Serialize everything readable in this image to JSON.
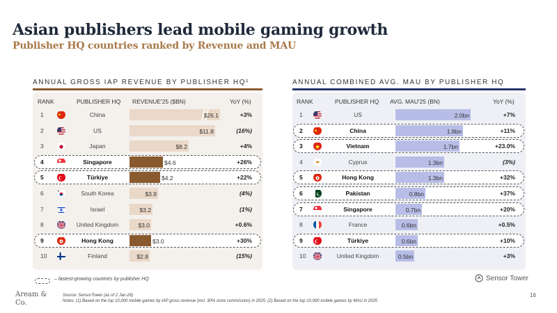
{
  "header": {
    "title": "Asian publishers lead mobile gaming growth",
    "subtitle": "Publisher HQ countries ranked by Revenue and MAU"
  },
  "left": {
    "title": "ANNUAL GROSS IAP REVENUE BY PUBLISHER HQ¹",
    "columns": {
      "rank": "RANK",
      "hq": "PUBLISHER HQ",
      "value": "REVENUE'25 ($BN)",
      "yoy": "YoY (%)"
    },
    "max_value": 12.5,
    "rows": [
      {
        "rank": "1",
        "country": "China",
        "value": 26.1,
        "label": "$26.1",
        "yoy": "+3%",
        "highlight": false,
        "flag": "china-flag",
        "break": true
      },
      {
        "rank": "2",
        "country": "US",
        "value": 11.8,
        "label": "$11.8",
        "yoy": "(16%)",
        "highlight": false,
        "flag": "us-flag"
      },
      {
        "rank": "3",
        "country": "Japan",
        "value": 8.2,
        "label": "$8.2",
        "yoy": "+4%",
        "highlight": false,
        "flag": "japan-flag"
      },
      {
        "rank": "4",
        "country": "Singapore",
        "value": 4.6,
        "label": "$4.6",
        "yoy": "+26%",
        "highlight": true,
        "flag": "singapore-flag"
      },
      {
        "rank": "5",
        "country": "Türkiye",
        "value": 4.2,
        "label": "$4.2",
        "yoy": "+22%",
        "highlight": true,
        "flag": "turkiye-flag"
      },
      {
        "rank": "6",
        "country": "South Korea",
        "value": 3.9,
        "label": "$3.9",
        "yoy": "(4%)",
        "highlight": false,
        "flag": "south-korea-flag"
      },
      {
        "rank": "7",
        "country": "Israel",
        "value": 3.2,
        "label": "$3.2",
        "yoy": "(1%)",
        "highlight": false,
        "flag": "israel-flag"
      },
      {
        "rank": "8",
        "country": "United Kingdom",
        "value": 3.0,
        "label": "$3.0",
        "yoy": "+0.6%",
        "highlight": false,
        "flag": "uk-flag"
      },
      {
        "rank": "9",
        "country": "Hong Kong",
        "value": 3.0,
        "label": "$3.0",
        "yoy": "+30%",
        "highlight": true,
        "flag": "hong-kong-flag"
      },
      {
        "rank": "10",
        "country": "Finland",
        "value": 2.8,
        "label": "$2.8",
        "yoy": "(15%)",
        "highlight": false,
        "flag": "finland-flag"
      }
    ]
  },
  "right": {
    "title": "ANNUAL COMBINED AVG. MAU BY PUBLISHER HQ",
    "columns": {
      "rank": "RANK",
      "hq": "PUBLISHER HQ",
      "value": "AVG. MAU'25 (BN)",
      "yoy": "YoY (%)"
    },
    "max_value": 2.0,
    "rows": [
      {
        "rank": "1",
        "country": "US",
        "value": 2.0,
        "label": "2.0bn",
        "yoy": "+7%",
        "highlight": false,
        "flag": "us-flag"
      },
      {
        "rank": "2",
        "country": "China",
        "value": 1.8,
        "label": "1.8bn",
        "yoy": "+11%",
        "highlight": true,
        "flag": "china-flag"
      },
      {
        "rank": "3",
        "country": "Vietnam",
        "value": 1.7,
        "label": "1.7bn",
        "yoy": "+23.0%",
        "highlight": true,
        "flag": "vietnam-flag"
      },
      {
        "rank": "4",
        "country": "Cyprus",
        "value": 1.3,
        "label": "1.3bn",
        "yoy": "(3%)",
        "highlight": false,
        "flag": "cyprus-flag"
      },
      {
        "rank": "5",
        "country": "Hong Kong",
        "value": 1.3,
        "label": "1.3bn",
        "yoy": "+32%",
        "highlight": true,
        "flag": "hong-kong-flag"
      },
      {
        "rank": "6",
        "country": "Pakistan",
        "value": 0.8,
        "label": "0.8bn",
        "yoy": "+37%",
        "highlight": true,
        "flag": "pakistan-flag"
      },
      {
        "rank": "7",
        "country": "Singapore",
        "value": 0.7,
        "label": "0.7bn",
        "yoy": "+20%",
        "highlight": true,
        "flag": "singapore-flag"
      },
      {
        "rank": "8",
        "country": "France",
        "value": 0.6,
        "label": "0.6bn",
        "yoy": "+0.5%",
        "highlight": false,
        "flag": "france-flag"
      },
      {
        "rank": "9",
        "country": "Türkiye",
        "value": 0.6,
        "label": "0.6bn",
        "yoy": "+10%",
        "highlight": true,
        "flag": "turkiye-flag"
      },
      {
        "rank": "10",
        "country": "United Kingdom",
        "value": 0.5,
        "label": "0.5bn",
        "yoy": "+3%",
        "highlight": false,
        "flag": "uk-flag"
      }
    ]
  },
  "colors": {
    "left_bar": "#ead8c8",
    "left_bar_highlight": "#8a5a2f",
    "right_bar": "#b7bde6"
  },
  "legend": "– fastest-growing countries by publisher HQ",
  "footer": {
    "source": "Source: SensorTower (as of 2 Jan-26)",
    "notes": "Notes: (1) Based on the top 10,000 mobile games by IAP gross revenue (incl. 30% store commission) in 2025; (2) Based on the top 10,000 mobile games by MAU in 2025",
    "logo_line1": "Aream &",
    "logo_line2": "Co.",
    "page": "16",
    "brand": "Sensor Tower"
  }
}
